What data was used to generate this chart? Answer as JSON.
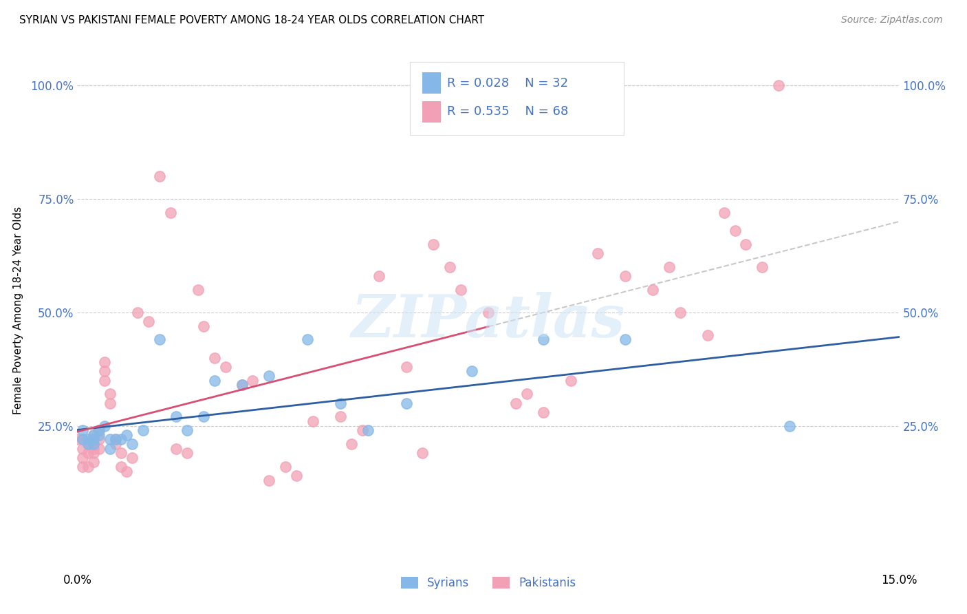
{
  "title": "SYRIAN VS PAKISTANI FEMALE POVERTY AMONG 18-24 YEAR OLDS CORRELATION CHART",
  "source": "Source: ZipAtlas.com",
  "ylabel": "Female Poverty Among 18-24 Year Olds",
  "xlim": [
    0.0,
    0.15
  ],
  "ylim": [
    -0.07,
    1.08
  ],
  "yticks": [
    0.25,
    0.5,
    0.75,
    1.0
  ],
  "ytick_labels": [
    "25.0%",
    "50.0%",
    "75.0%",
    "100.0%"
  ],
  "xtick_positions": [
    0.0,
    0.025,
    0.05,
    0.075,
    0.1,
    0.125,
    0.15
  ],
  "xtick_labels": [
    "0.0%",
    "",
    "",
    "",
    "",
    "",
    "15.0%"
  ],
  "grid_color": "#cccccc",
  "background_color": "#ffffff",
  "watermark_text": "ZIPatlas",
  "syrian_color": "#85b8e8",
  "pakistani_color": "#f2a0b5",
  "syrian_line_color": "#2e5fa3",
  "pakistani_line_color": "#d94f72",
  "dashed_line_color": "#c8c8c8",
  "label_color": "#4472c4",
  "R_syrian": 0.028,
  "N_syrian": 32,
  "R_pakistani": 0.535,
  "N_pakistani": 68,
  "syrians_x": [
    0.001,
    0.001,
    0.002,
    0.002,
    0.003,
    0.003,
    0.003,
    0.004,
    0.004,
    0.005,
    0.006,
    0.006,
    0.007,
    0.008,
    0.009,
    0.01,
    0.012,
    0.015,
    0.018,
    0.02,
    0.023,
    0.025,
    0.03,
    0.035,
    0.042,
    0.048,
    0.053,
    0.06,
    0.072,
    0.085,
    0.1,
    0.13
  ],
  "syrians_y": [
    0.24,
    0.22,
    0.22,
    0.21,
    0.23,
    0.22,
    0.21,
    0.24,
    0.23,
    0.25,
    0.22,
    0.2,
    0.22,
    0.22,
    0.23,
    0.21,
    0.24,
    0.44,
    0.27,
    0.24,
    0.27,
    0.35,
    0.34,
    0.36,
    0.44,
    0.3,
    0.24,
    0.3,
    0.37,
    0.44,
    0.44,
    0.25
  ],
  "pakistanis_x": [
    0.0,
    0.001,
    0.001,
    0.001,
    0.001,
    0.002,
    0.002,
    0.002,
    0.003,
    0.003,
    0.003,
    0.003,
    0.003,
    0.004,
    0.004,
    0.004,
    0.005,
    0.005,
    0.005,
    0.006,
    0.006,
    0.007,
    0.007,
    0.008,
    0.008,
    0.009,
    0.01,
    0.011,
    0.013,
    0.015,
    0.017,
    0.018,
    0.02,
    0.022,
    0.023,
    0.025,
    0.027,
    0.03,
    0.032,
    0.035,
    0.038,
    0.04,
    0.043,
    0.048,
    0.05,
    0.052,
    0.055,
    0.06,
    0.063,
    0.065,
    0.068,
    0.07,
    0.075,
    0.08,
    0.082,
    0.085,
    0.09,
    0.095,
    0.1,
    0.105,
    0.108,
    0.11,
    0.115,
    0.118,
    0.12,
    0.122,
    0.125,
    0.128
  ],
  "pakistanis_y": [
    0.22,
    0.16,
    0.18,
    0.2,
    0.22,
    0.16,
    0.19,
    0.21,
    0.2,
    0.19,
    0.17,
    0.21,
    0.23,
    0.2,
    0.22,
    0.24,
    0.39,
    0.37,
    0.35,
    0.3,
    0.32,
    0.22,
    0.21,
    0.16,
    0.19,
    0.15,
    0.18,
    0.5,
    0.48,
    0.8,
    0.72,
    0.2,
    0.19,
    0.55,
    0.47,
    0.4,
    0.38,
    0.34,
    0.35,
    0.13,
    0.16,
    0.14,
    0.26,
    0.27,
    0.21,
    0.24,
    0.58,
    0.38,
    0.19,
    0.65,
    0.6,
    0.55,
    0.5,
    0.3,
    0.32,
    0.28,
    0.35,
    0.63,
    0.58,
    0.55,
    0.6,
    0.5,
    0.45,
    0.72,
    0.68,
    0.65,
    0.6,
    1.0
  ]
}
